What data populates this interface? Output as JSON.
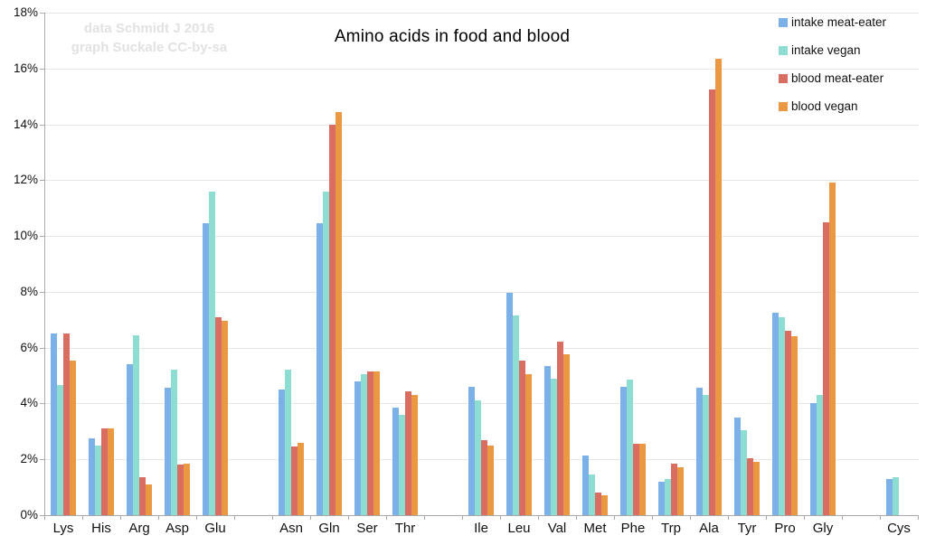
{
  "chart_data": {
    "type": "bar",
    "title": "Amino acids in food and blood",
    "watermark_line1": "data Schmidt J 2016",
    "watermark_line2": "graph Suckale CC-by-sa",
    "xlabel": "",
    "ylabel": "",
    "ylim": [
      0,
      18
    ],
    "ytick_step": 2,
    "ytick_labels": [
      "0%",
      "2%",
      "4%",
      "6%",
      "8%",
      "10%",
      "12%",
      "14%",
      "16%",
      "18%"
    ],
    "grid": true,
    "legend_position": "top-right",
    "categories": [
      "Lys",
      "His",
      "Arg",
      "Asp",
      "Glu",
      "",
      "Asn",
      "Gln",
      "Ser",
      "Thr",
      "",
      "Ile",
      "Leu",
      "Val",
      "Met",
      "Phe",
      "Trp",
      "Ala",
      "Tyr",
      "Pro",
      "Gly",
      "",
      "Cys"
    ],
    "series": [
      {
        "name": "intake meat-eater",
        "color": "#7cb1e8",
        "values": [
          6.5,
          2.75,
          5.4,
          4.55,
          10.45,
          null,
          4.5,
          10.45,
          4.8,
          3.85,
          null,
          4.6,
          7.95,
          5.35,
          2.15,
          4.6,
          1.2,
          4.55,
          3.5,
          7.25,
          4.0,
          null,
          1.3
        ]
      },
      {
        "name": "intake vegan",
        "color": "#8dddd3",
        "values": [
          4.65,
          2.5,
          6.45,
          5.2,
          11.6,
          null,
          5.2,
          11.6,
          5.05,
          3.6,
          null,
          4.1,
          7.15,
          4.9,
          1.45,
          4.85,
          1.3,
          4.3,
          3.05,
          7.1,
          4.3,
          null,
          1.35
        ]
      },
      {
        "name": "blood meat-eater",
        "color": "#d96d61",
        "values": [
          6.5,
          3.1,
          1.35,
          1.8,
          7.1,
          null,
          2.45,
          14.0,
          5.15,
          4.45,
          null,
          2.7,
          5.55,
          6.2,
          0.8,
          2.55,
          1.85,
          15.25,
          2.05,
          6.6,
          10.5,
          null,
          null
        ]
      },
      {
        "name": "blood vegan",
        "color": "#eb9843",
        "values": [
          5.55,
          3.1,
          1.1,
          1.85,
          6.95,
          null,
          2.6,
          14.45,
          5.15,
          4.3,
          null,
          2.5,
          5.05,
          5.75,
          0.7,
          2.55,
          1.7,
          16.35,
          1.9,
          6.4,
          11.9,
          null,
          null
        ]
      }
    ],
    "colors": {
      "gridline": "#e6e6e6",
      "axis": "#a9a9a9",
      "text": "#111111",
      "watermark": "#e2e2e2"
    }
  }
}
